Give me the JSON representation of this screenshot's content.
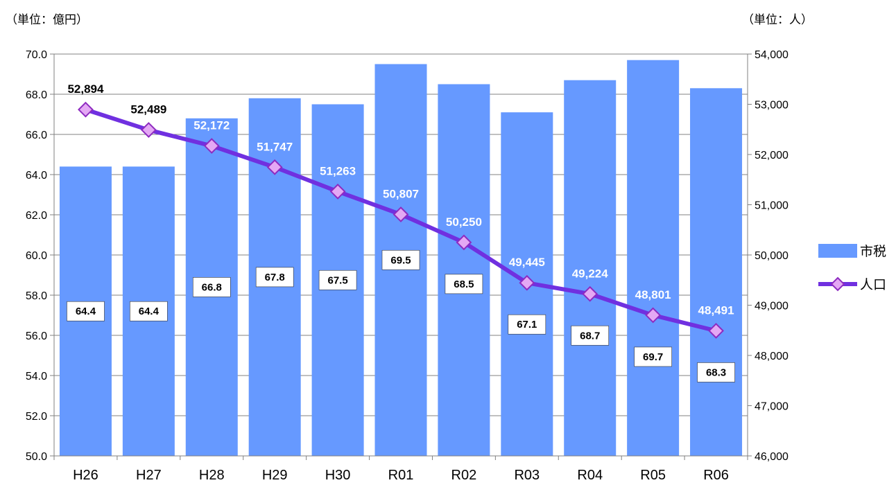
{
  "units": {
    "left": "（単位：億円）",
    "right": "（単位：人）"
  },
  "colors": {
    "bar": "#6699FF",
    "line": "#7030E0",
    "marker_fill": "#E4A8F4",
    "marker_stroke": "#8E2BC0",
    "label_dark": "#000000",
    "label_light": "#ffffff"
  },
  "chart_data": {
    "type": "bar",
    "categories": [
      "H26",
      "H27",
      "H28",
      "H29",
      "H30",
      "R01",
      "R02",
      "R03",
      "R04",
      "R05",
      "R06"
    ],
    "series": [
      {
        "name": "市税",
        "type": "bar",
        "axis": "left",
        "values": [
          64.4,
          64.4,
          66.8,
          67.8,
          67.5,
          69.5,
          68.5,
          67.1,
          68.7,
          69.7,
          68.3
        ],
        "labels": [
          "64.4",
          "64.4",
          "66.8",
          "67.8",
          "67.5",
          "69.5",
          "68.5",
          "67.1",
          "68.7",
          "69.7",
          "68.3"
        ]
      },
      {
        "name": "人口",
        "type": "line",
        "axis": "right",
        "values": [
          52894,
          52489,
          52172,
          51747,
          51263,
          50807,
          50250,
          49445,
          49224,
          48801,
          48491
        ],
        "labels": [
          "52,894",
          "52,489",
          "52,172",
          "51,747",
          "51,263",
          "50,807",
          "50,250",
          "49,445",
          "49,224",
          "48,801",
          "48,491"
        ]
      }
    ],
    "y_left": {
      "range": [
        50,
        70
      ],
      "ticks": [
        50,
        52,
        54,
        56,
        58,
        60,
        62,
        64,
        66,
        68,
        70
      ],
      "tick_labels": [
        "50.0",
        "52.0",
        "54.0",
        "56.0",
        "58.0",
        "60.0",
        "62.0",
        "64.0",
        "66.0",
        "68.0",
        "70.0"
      ]
    },
    "y_right": {
      "range": [
        46000,
        54000
      ],
      "ticks": [
        46000,
        47000,
        48000,
        49000,
        50000,
        51000,
        52000,
        53000,
        54000
      ],
      "tick_labels": [
        "46,000",
        "47,000",
        "48,000",
        "49,000",
        "50,000",
        "51,000",
        "52,000",
        "53,000",
        "54,000"
      ]
    },
    "grid": true,
    "legend": "right"
  }
}
